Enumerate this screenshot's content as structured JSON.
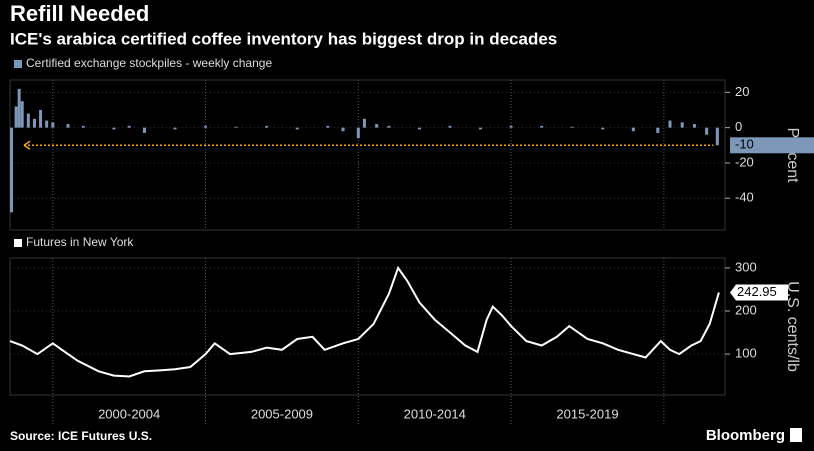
{
  "title": "Refill Needed",
  "subtitle": "ICE's arabica certified coffee inventory has biggest drop in decades",
  "source": "Source: ICE Futures U.S.",
  "brand": "Bloomberg",
  "chart_data": [
    {
      "type": "bar",
      "y_label": "Percent",
      "series": [
        {
          "name": "Certified exchange stockpiles - weekly change",
          "color": "#7d97b8",
          "x": [
            1998.65,
            1998.8,
            1998.9,
            1999.0,
            1999.2,
            1999.4,
            1999.6,
            1999.8,
            2000.0,
            2000.5,
            2001.0,
            2002.0,
            2002.5,
            2003.0,
            2004.0,
            2005.0,
            2006.0,
            2007.0,
            2008.0,
            2009.0,
            2009.5,
            2010.0,
            2010.2,
            2010.6,
            2011.0,
            2012.0,
            2013.0,
            2014.0,
            2015.0,
            2016.0,
            2017.0,
            2018.0,
            2019.0,
            2019.8,
            2020.2,
            2020.6,
            2021.0,
            2021.4,
            2021.75
          ],
          "values": [
            -48,
            12,
            22,
            15,
            8,
            5,
            10,
            4,
            3,
            2,
            1,
            -1,
            1,
            -3,
            -1,
            1,
            0.5,
            1,
            -1,
            1,
            -2,
            -6,
            5,
            2,
            1,
            -1,
            1,
            -1,
            1,
            1,
            0.5,
            -1,
            -2,
            -3,
            4,
            3,
            2,
            -4,
            -10
          ]
        }
      ],
      "annotation_color": "#f5a623",
      "xlim": [
        1998.6,
        2022.0
      ],
      "xticks": [
        2000,
        2005,
        2010,
        2015,
        2020
      ],
      "ylim": [
        -58,
        27
      ],
      "yticks": [
        -40,
        -20,
        0,
        20
      ]
    },
    {
      "type": "line",
      "y_label": "U.S. cents/lb",
      "categories": [
        "2000-2004",
        "2005-2009",
        "2010-2014",
        "2015-2019"
      ],
      "series": [
        {
          "name": "Futures in New York",
          "color": "#ffffff",
          "x": [
            1998.6,
            1999.0,
            1999.5,
            2000.0,
            2000.3,
            2000.8,
            2001.5,
            2002.0,
            2002.5,
            2003.0,
            2003.5,
            2004.0,
            2004.5,
            2005.0,
            2005.3,
            2005.8,
            2006.5,
            2007.0,
            2007.5,
            2008.0,
            2008.5,
            2008.9,
            2009.5,
            2010.0,
            2010.5,
            2011.0,
            2011.3,
            2011.6,
            2012.0,
            2012.5,
            2013.0,
            2013.5,
            2013.9,
            2014.2,
            2014.4,
            2014.7,
            2015.0,
            2015.5,
            2016.0,
            2016.5,
            2016.9,
            2017.5,
            2018.0,
            2018.5,
            2019.0,
            2019.4,
            2019.9,
            2020.2,
            2020.5,
            2020.9,
            2021.2,
            2021.5,
            2021.8
          ],
          "values": [
            130,
            120,
            100,
            125,
            110,
            85,
            60,
            50,
            48,
            60,
            62,
            65,
            70,
            100,
            125,
            100,
            105,
            115,
            110,
            135,
            140,
            110,
            125,
            135,
            170,
            240,
            300,
            270,
            220,
            180,
            150,
            120,
            105,
            180,
            210,
            190,
            165,
            130,
            120,
            140,
            165,
            135,
            125,
            110,
            100,
            92,
            130,
            110,
            100,
            120,
            130,
            170,
            242.95
          ]
        }
      ],
      "xlim": [
        1998.6,
        2022.0
      ],
      "xticks": [
        2000,
        2005,
        2010,
        2015,
        2020
      ],
      "ylim": [
        5,
        323
      ],
      "yticks": [
        100,
        200,
        300
      ]
    }
  ]
}
